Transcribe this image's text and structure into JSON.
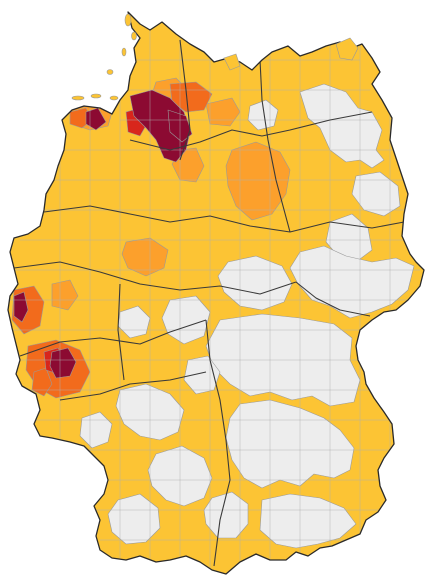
{
  "map": {
    "country": "Germany",
    "colors": {
      "no_data": "#ededed",
      "low": "#fcc434",
      "medium": "#fca02c",
      "high": "#f26b1c",
      "very_high": "#d8261c",
      "extreme": "#8c0a32"
    }
  }
}
